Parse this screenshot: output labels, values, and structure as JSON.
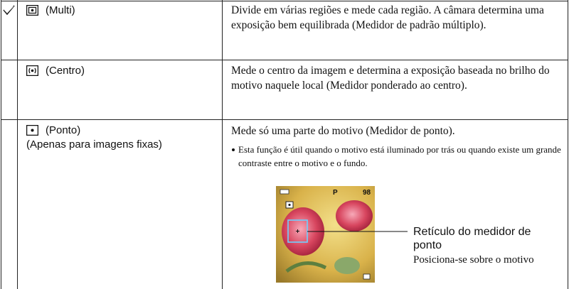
{
  "rows": [
    {
      "mode": "(Multi)",
      "description": "Divide em várias regiões e mede cada região. A câmara determina uma exposição bem equilibrada (Medidor de padrão múltiplo)."
    },
    {
      "mode": "(Centro)",
      "description": "Mede o centro da imagem e determina a exposição baseada no brilho do motivo naquele local (Medidor ponderado ao centro)."
    },
    {
      "mode": "(Ponto)",
      "note": "(Apenas para imagens fixas)",
      "description": "Mede só uma parte do motivo (Medidor de ponto).",
      "bullet": "Esta função é útil quando o motivo está iluminado por trás ou quando existe um grande contraste entre o motivo e o fundo."
    }
  ],
  "screen": {
    "mode": "P",
    "remaining": "98"
  },
  "callout": {
    "title": "Retículo do medidor de ponto",
    "subtitle": "Posiciona-se sobre o motivo"
  }
}
